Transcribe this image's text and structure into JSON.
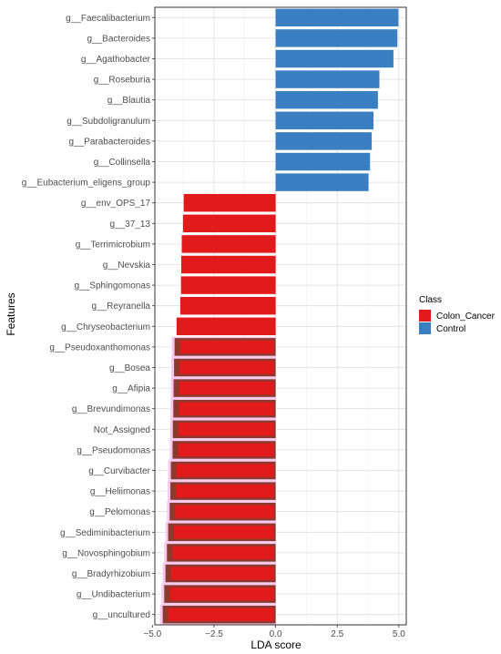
{
  "chart_data": {
    "type": "bar",
    "orientation": "horizontal",
    "xlabel": "LDA score",
    "ylabel": "Features",
    "xlim": [
      -4.9,
      5.3
    ],
    "xticks": [
      -5.0,
      -2.5,
      0.0,
      2.5,
      5.0
    ],
    "xtick_labels": [
      "−5.0",
      "−2.5",
      "0.0",
      "2.5",
      "5.0"
    ],
    "grid": true,
    "legend": {
      "title": "Class",
      "position": "right",
      "entries": [
        {
          "name": "Colon_Cancer",
          "color": "#E31A1C"
        },
        {
          "name": "Control",
          "color": "#3A7FC1"
        }
      ]
    },
    "categories": [
      "g__Faecalibacterium",
      "g__Bacteroides",
      "g__Agathobacter",
      "g__Roseburia",
      "g__Blautia",
      "g__Subdoligranulum",
      "g__Parabacteroides",
      "g__Collinsella",
      "g__Eubacterium_eligens_group",
      "g__env_OPS_17",
      "g__37_13",
      "g__Terrimicrobium",
      "g__Nevskia",
      "g__Sphingomonas",
      "g__Reyranella",
      "g__Chryseobacterium",
      "g__Pseudoxanthomonas",
      "g__Bosea",
      "g__Afipia",
      "g__Brevundimonas",
      "Not_Assigned",
      "g__Pseudomonas",
      "g__Curvibacter",
      "g__Heliimonas",
      "g__Pelomonas",
      "g__Sediminibacterium",
      "g__Novosphingobium",
      "g__Bradyrhizobium",
      "g__Undibacterium",
      "g__uncultured"
    ],
    "values": [
      4.98,
      4.94,
      4.78,
      4.21,
      4.15,
      3.97,
      3.9,
      3.83,
      3.77,
      -3.73,
      -3.76,
      -3.81,
      -3.83,
      -3.84,
      -3.87,
      -4.02,
      -4.1,
      -4.12,
      -4.14,
      -4.15,
      -4.17,
      -4.18,
      -4.25,
      -4.27,
      -4.3,
      -4.36,
      -4.41,
      -4.47,
      -4.52,
      -4.58
    ],
    "classes": [
      "Control",
      "Control",
      "Control",
      "Control",
      "Control",
      "Control",
      "Control",
      "Control",
      "Control",
      "Colon_Cancer",
      "Colon_Cancer",
      "Colon_Cancer",
      "Colon_Cancer",
      "Colon_Cancer",
      "Colon_Cancer",
      "Colon_Cancer",
      "Colon_Cancer",
      "Colon_Cancer",
      "Colon_Cancer",
      "Colon_Cancer",
      "Colon_Cancer",
      "Colon_Cancer",
      "Colon_Cancer",
      "Colon_Cancer",
      "Colon_Cancer",
      "Colon_Cancer",
      "Colon_Cancer",
      "Colon_Cancer",
      "Colon_Cancer",
      "Colon_Cancer"
    ],
    "colors": {
      "Colon_Cancer": "#E31A1C",
      "Control": "#3A7FC1",
      "overlap_fill": "#8B3A2E",
      "overlap_halo": "#F8C8EE"
    },
    "overlap_start_index": 16
  }
}
